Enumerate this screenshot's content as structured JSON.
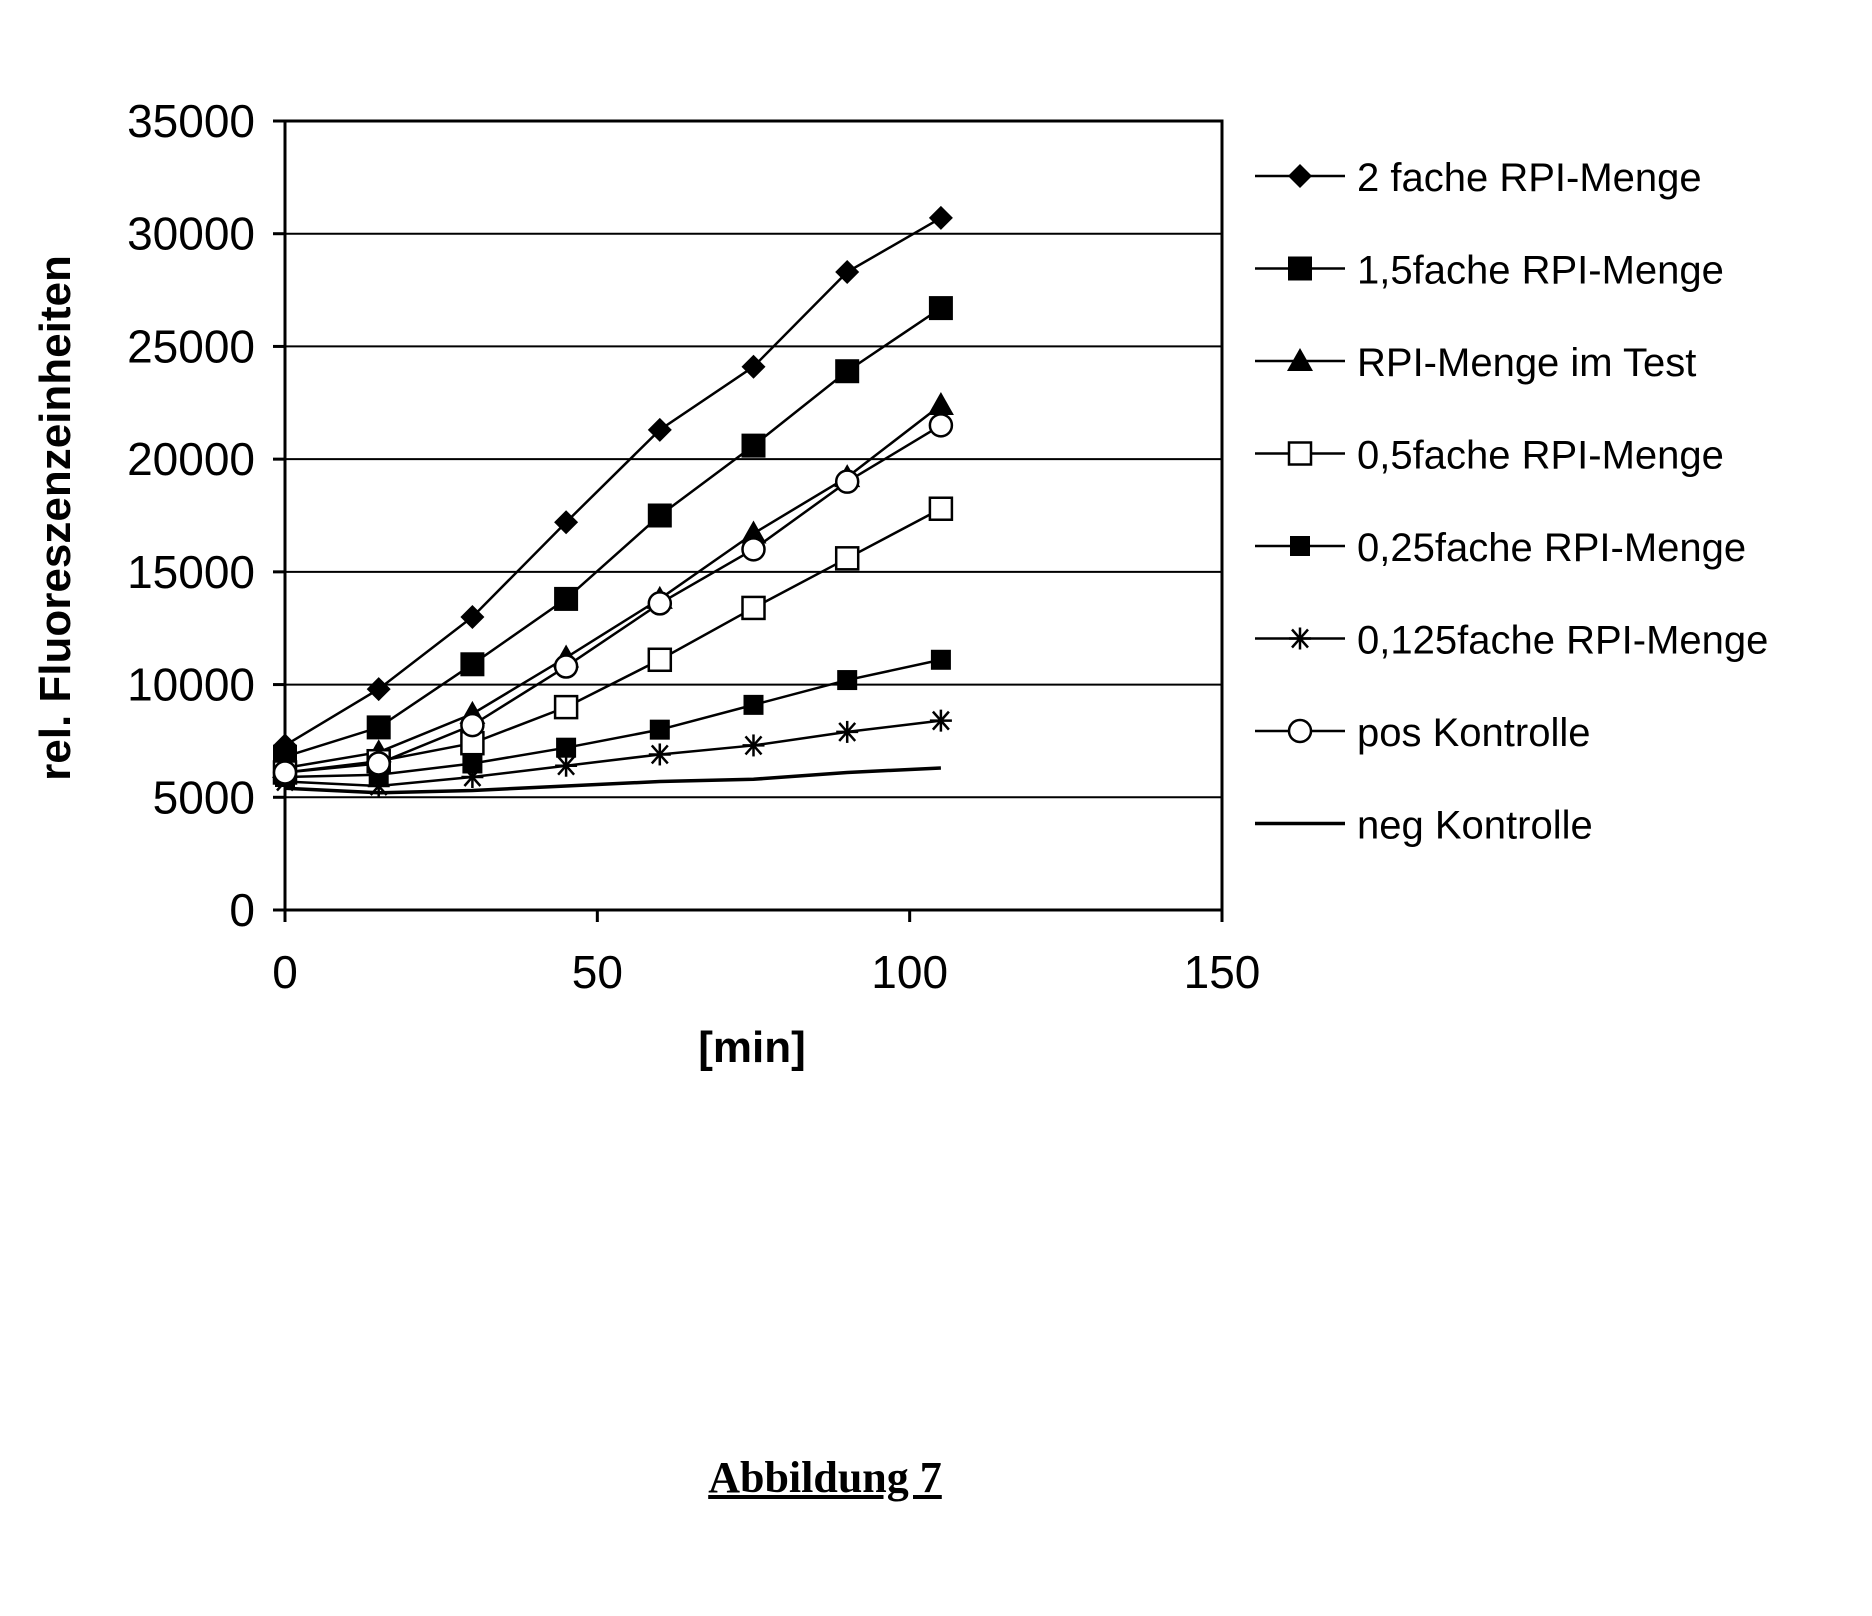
{
  "figure": {
    "caption": "Abbildung 7"
  },
  "chart_data": {
    "type": "line",
    "xlabel": "[min]",
    "ylabel": "rel. Fluoreszenzeinheiten",
    "xlim": [
      0,
      150
    ],
    "ylim": [
      0,
      35000
    ],
    "x_ticks": [
      "0",
      "50",
      "100",
      "150"
    ],
    "y_ticks": [
      "0",
      "5000",
      "10000",
      "15000",
      "20000",
      "25000",
      "30000",
      "35000"
    ],
    "grid": "horizontal",
    "legend_position": "right",
    "x": [
      0,
      15,
      30,
      45,
      60,
      75,
      90,
      105
    ],
    "series": [
      {
        "name": "2 fache RPI-Menge",
        "marker": "diamond",
        "values": [
          7300,
          9800,
          13000,
          17200,
          21300,
          24100,
          28300,
          30700
        ]
      },
      {
        "name": "1,5fache RPI-Menge",
        "marker": "square-filled",
        "values": [
          6800,
          8100,
          10900,
          13800,
          17500,
          20600,
          23900,
          26700
        ]
      },
      {
        "name": "RPI-Menge im Test",
        "marker": "triangle",
        "values": [
          6300,
          7000,
          8700,
          11200,
          13800,
          16700,
          19200,
          22400
        ]
      },
      {
        "name": "0,5fache RPI-Menge",
        "marker": "square-open",
        "values": [
          6100,
          6600,
          7400,
          9000,
          11100,
          13400,
          15600,
          17800
        ]
      },
      {
        "name": "0,25fache RPI-Menge",
        "marker": "square-filled-small",
        "values": [
          5900,
          6000,
          6500,
          7200,
          8000,
          9100,
          10200,
          11100
        ]
      },
      {
        "name": "0,125fache RPI-Menge",
        "marker": "star",
        "values": [
          5700,
          5500,
          5900,
          6400,
          6900,
          7300,
          7900,
          8400
        ]
      },
      {
        "name": "pos Kontrolle",
        "marker": "circle-open",
        "values": [
          6100,
          6500,
          8200,
          10800,
          13600,
          16000,
          19000,
          21500
        ]
      },
      {
        "name": "neg Kontrolle",
        "marker": "none",
        "values": [
          5400,
          5200,
          5300,
          5500,
          5700,
          5800,
          6100,
          6300
        ]
      }
    ]
  }
}
